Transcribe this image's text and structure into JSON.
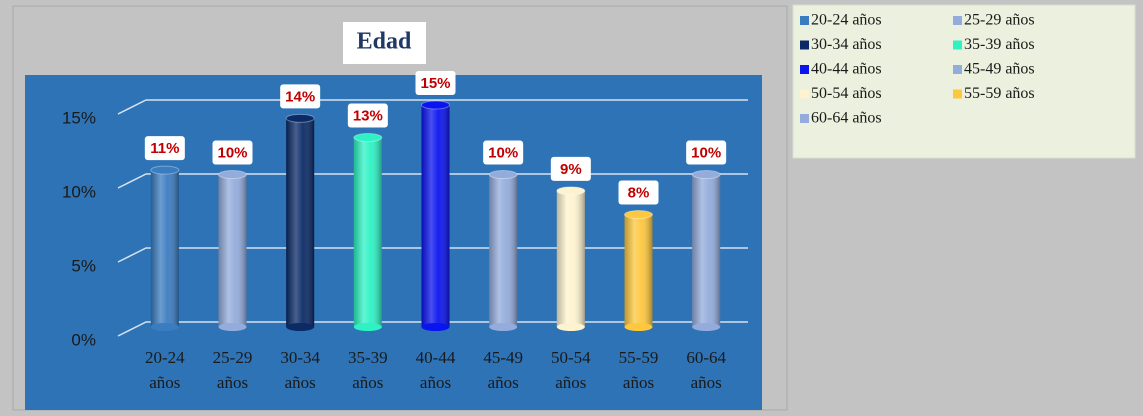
{
  "chart_data": {
    "type": "bar",
    "title": "Edad",
    "categories": [
      "20-24 años",
      "25-29 años",
      "30-34 años",
      "35-39 años",
      "40-44 años",
      "45-49 años",
      "50-54 años",
      "55-59 años",
      "60-64 años"
    ],
    "values": [
      10.6,
      10.3,
      14.1,
      12.8,
      15.0,
      10.3,
      9.2,
      7.6,
      10.3
    ],
    "value_labels": [
      "11%",
      "10%",
      "14%",
      "13%",
      "15%",
      "10%",
      "9%",
      "8%",
      "10%"
    ],
    "colors": [
      "#3a7cc0",
      "#93acdc",
      "#0b2a66",
      "#2ef2c4",
      "#0a14ee",
      "#93acdc",
      "#fdf3cf",
      "#fdc83e",
      "#93acdc"
    ],
    "ylim": [
      0,
      15
    ],
    "yticks": [
      {
        "value": 0,
        "label": "0%"
      },
      {
        "value": 5,
        "label": "5%"
      },
      {
        "value": 10,
        "label": "10%"
      },
      {
        "value": 15,
        "label": "15%"
      }
    ],
    "grid": true,
    "legend": "right"
  }
}
